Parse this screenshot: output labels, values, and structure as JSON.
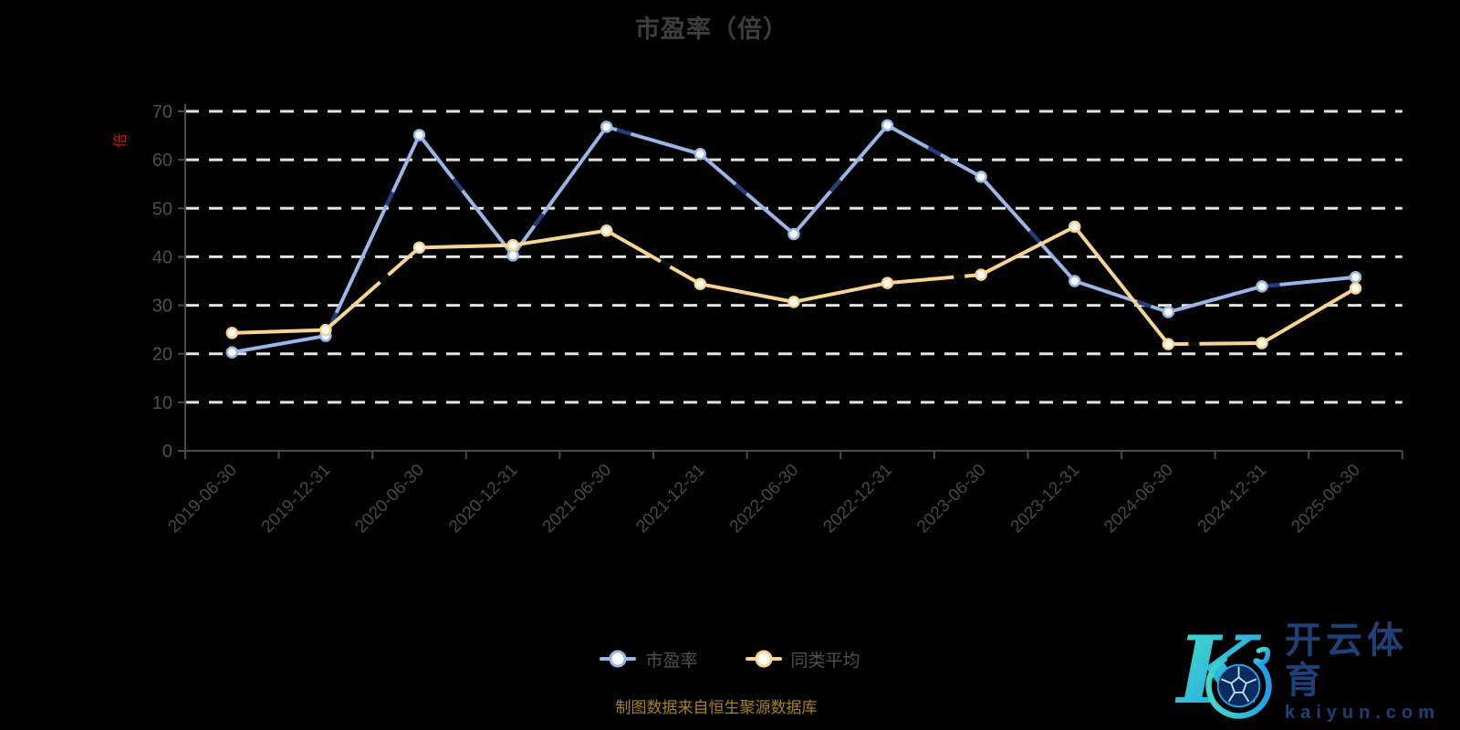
{
  "chart_data": {
    "type": "line",
    "title": "市盈率（倍）",
    "ylabel": "倍",
    "xlabel": "",
    "categories": [
      "2019-06-30",
      "2019-12-31",
      "2020-06-30",
      "2020-12-31",
      "2021-06-30",
      "2021-12-31",
      "2022-06-30",
      "2022-12-31",
      "2023-06-30",
      "2023-12-31",
      "2024-06-30",
      "2024-12-31",
      "2025-06-30"
    ],
    "series": [
      {
        "name": "市盈率",
        "color": "#9ab6e6",
        "overlay_color": "#1f3e7c",
        "marker_fill": "#ffffff",
        "values": [
          20.3,
          23.7,
          65.1,
          40.3,
          66.8,
          61.2,
          44.7,
          67.1,
          56.5,
          35.0,
          28.6,
          33.9,
          35.8
        ]
      },
      {
        "name": "同类平均",
        "color": "#f6d492",
        "overlay_color": "#0d0d0d",
        "marker_fill": "#fffdf6",
        "values": [
          24.3,
          24.9,
          41.9,
          42.4,
          45.4,
          34.4,
          30.7,
          34.6,
          36.3,
          46.2,
          22.0,
          22.2,
          33.5
        ]
      }
    ],
    "ylim": [
      0,
      70
    ],
    "yticks": [
      0,
      10,
      20,
      30,
      40,
      50,
      60,
      70
    ],
    "grid": "horizontal-dashed",
    "legend_position": "bottom-center"
  },
  "colors": {
    "background": "#000000",
    "title": "#3d3d3d",
    "axis": "#4a4a4a",
    "grid": "#e3e3e3",
    "y_tick_label": "#4f4f4f",
    "x_tick_label": "#474747",
    "unit": "#c01818",
    "footer": "#a8821c",
    "watermark_text": "#1e4076"
  },
  "footer": {
    "text": "制图数据来自恒生聚源数据库"
  },
  "watermark": {
    "brand": "开云体育",
    "domain": "kaiyun.com"
  }
}
